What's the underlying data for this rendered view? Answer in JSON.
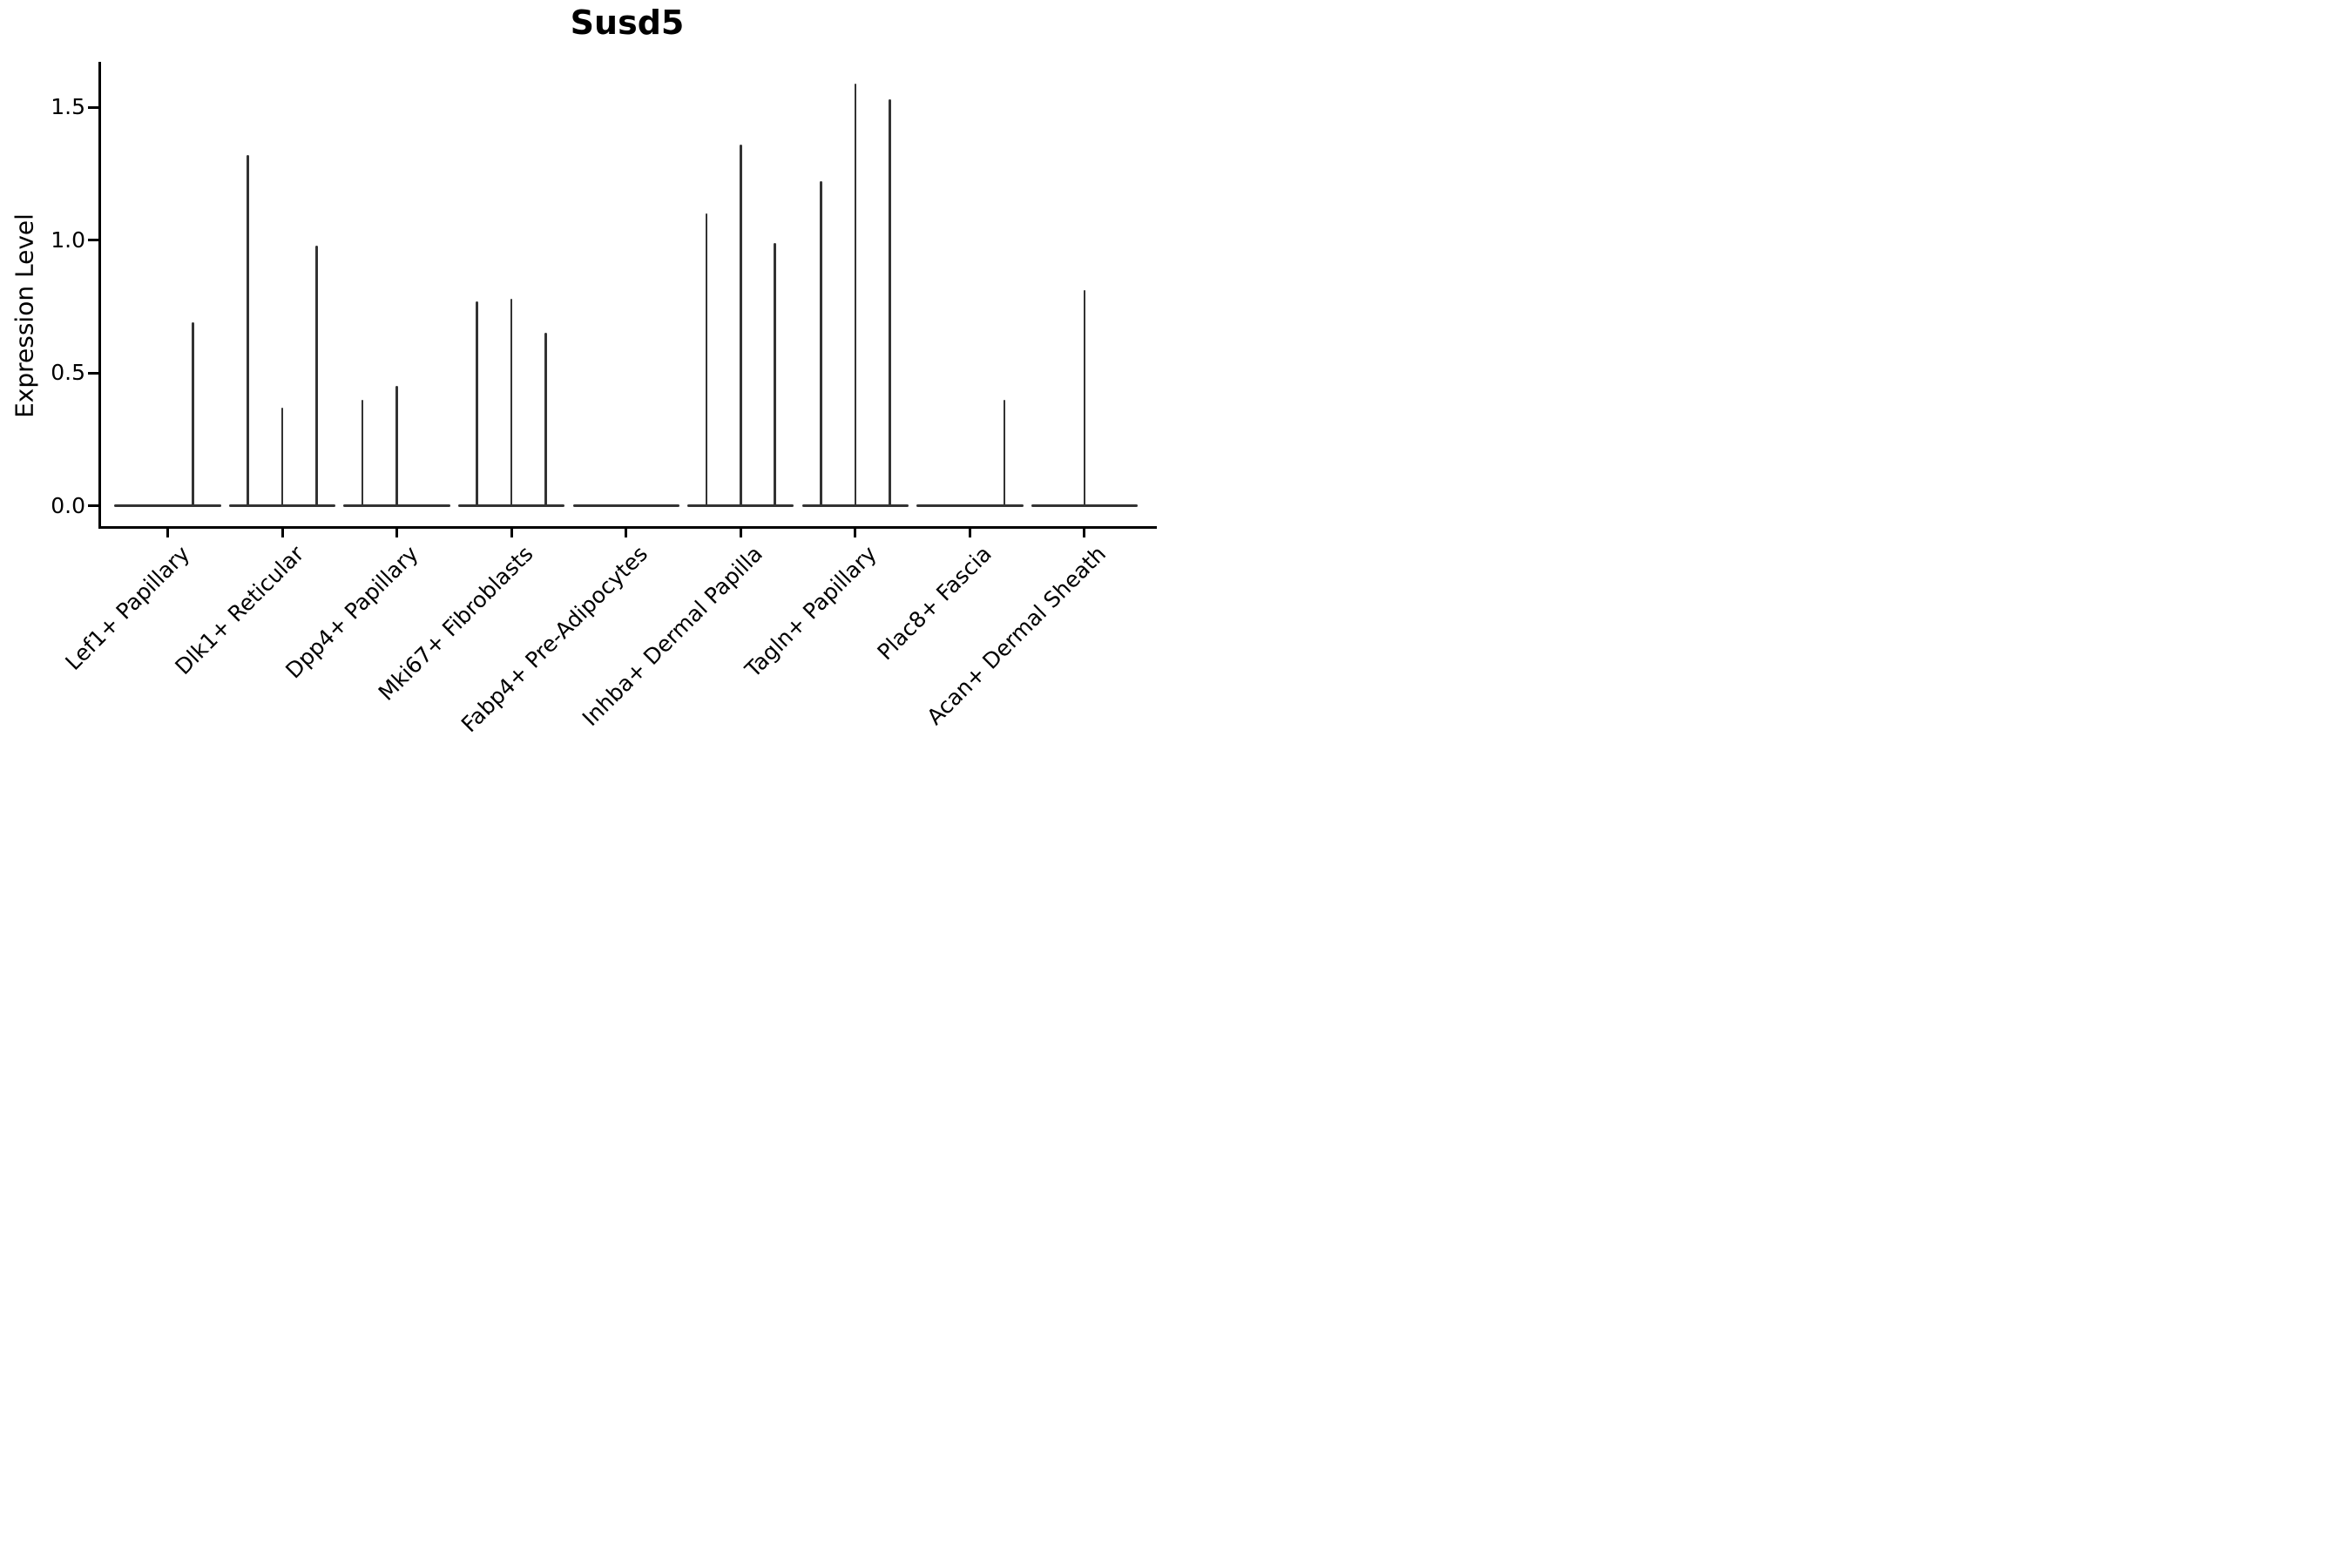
{
  "figure": {
    "title": "Susd5"
  },
  "chart_data": {
    "type": "violin",
    "title": "Susd5",
    "xlabel": "",
    "ylabel": "Expression Level",
    "ytick_labels": [
      "0.0",
      "0.5",
      "1.0",
      "1.5"
    ],
    "ytick_values": [
      0.0,
      0.5,
      1.0,
      1.5
    ],
    "ylim": [
      -0.08,
      1.67
    ],
    "grid": false,
    "legend": null,
    "violin_line_color": "#333333",
    "axis_color": "#000000",
    "categories": [
      "Lef1+ Papillary",
      "Dlk1+ Reticular",
      "Dpp4+ Papillary",
      "Mki67+ Fibroblasts",
      "Fabp4+ Pre-Adipocytes",
      "Inhba+ Dermal Papilla",
      "Tagln+ Papillary",
      "Plac8+ Fascia",
      "Acan+ Dermal Sheath"
    ],
    "description": "Each category shows a collapsed violin: a flat baseline at expression 0 plus thin vertical spikes reaching the maximum expression of sparse expressing cells. Spike offset_frac is the horizontal position of the spike within the category (-0.5..0.5 of category spacing).",
    "violins": [
      {
        "category": "Lef1+ Papillary",
        "spikes": [
          {
            "offset_frac": 0.22,
            "value": 0.69
          }
        ]
      },
      {
        "category": "Dlk1+ Reticular",
        "spikes": [
          {
            "offset_frac": -0.3,
            "value": 1.32
          },
          {
            "offset_frac": 0.0,
            "value": 0.37
          },
          {
            "offset_frac": 0.3,
            "value": 0.98
          }
        ]
      },
      {
        "category": "Dpp4+ Papillary",
        "spikes": [
          {
            "offset_frac": -0.3,
            "value": 0.4
          },
          {
            "offset_frac": 0.0,
            "value": 0.45
          }
        ]
      },
      {
        "category": "Mki67+ Fibroblasts",
        "spikes": [
          {
            "offset_frac": -0.3,
            "value": 0.77
          },
          {
            "offset_frac": 0.0,
            "value": 0.78
          },
          {
            "offset_frac": 0.3,
            "value": 0.65
          }
        ]
      },
      {
        "category": "Fabp4+ Pre-Adipocytes",
        "spikes": []
      },
      {
        "category": "Inhba+ Dermal Papilla",
        "spikes": [
          {
            "offset_frac": -0.3,
            "value": 1.1
          },
          {
            "offset_frac": 0.0,
            "value": 1.36
          },
          {
            "offset_frac": 0.3,
            "value": 0.99
          }
        ]
      },
      {
        "category": "Tagln+ Papillary",
        "spikes": [
          {
            "offset_frac": -0.3,
            "value": 1.22
          },
          {
            "offset_frac": 0.0,
            "value": 1.59
          },
          {
            "offset_frac": 0.3,
            "value": 1.53
          }
        ]
      },
      {
        "category": "Plac8+ Fascia",
        "spikes": [
          {
            "offset_frac": 0.3,
            "value": 0.4
          }
        ]
      },
      {
        "category": "Acan+ Dermal Sheath",
        "spikes": [
          {
            "offset_frac": 0.0,
            "value": 0.81
          }
        ]
      }
    ],
    "baseline_halfwidth_frac": 0.465
  }
}
